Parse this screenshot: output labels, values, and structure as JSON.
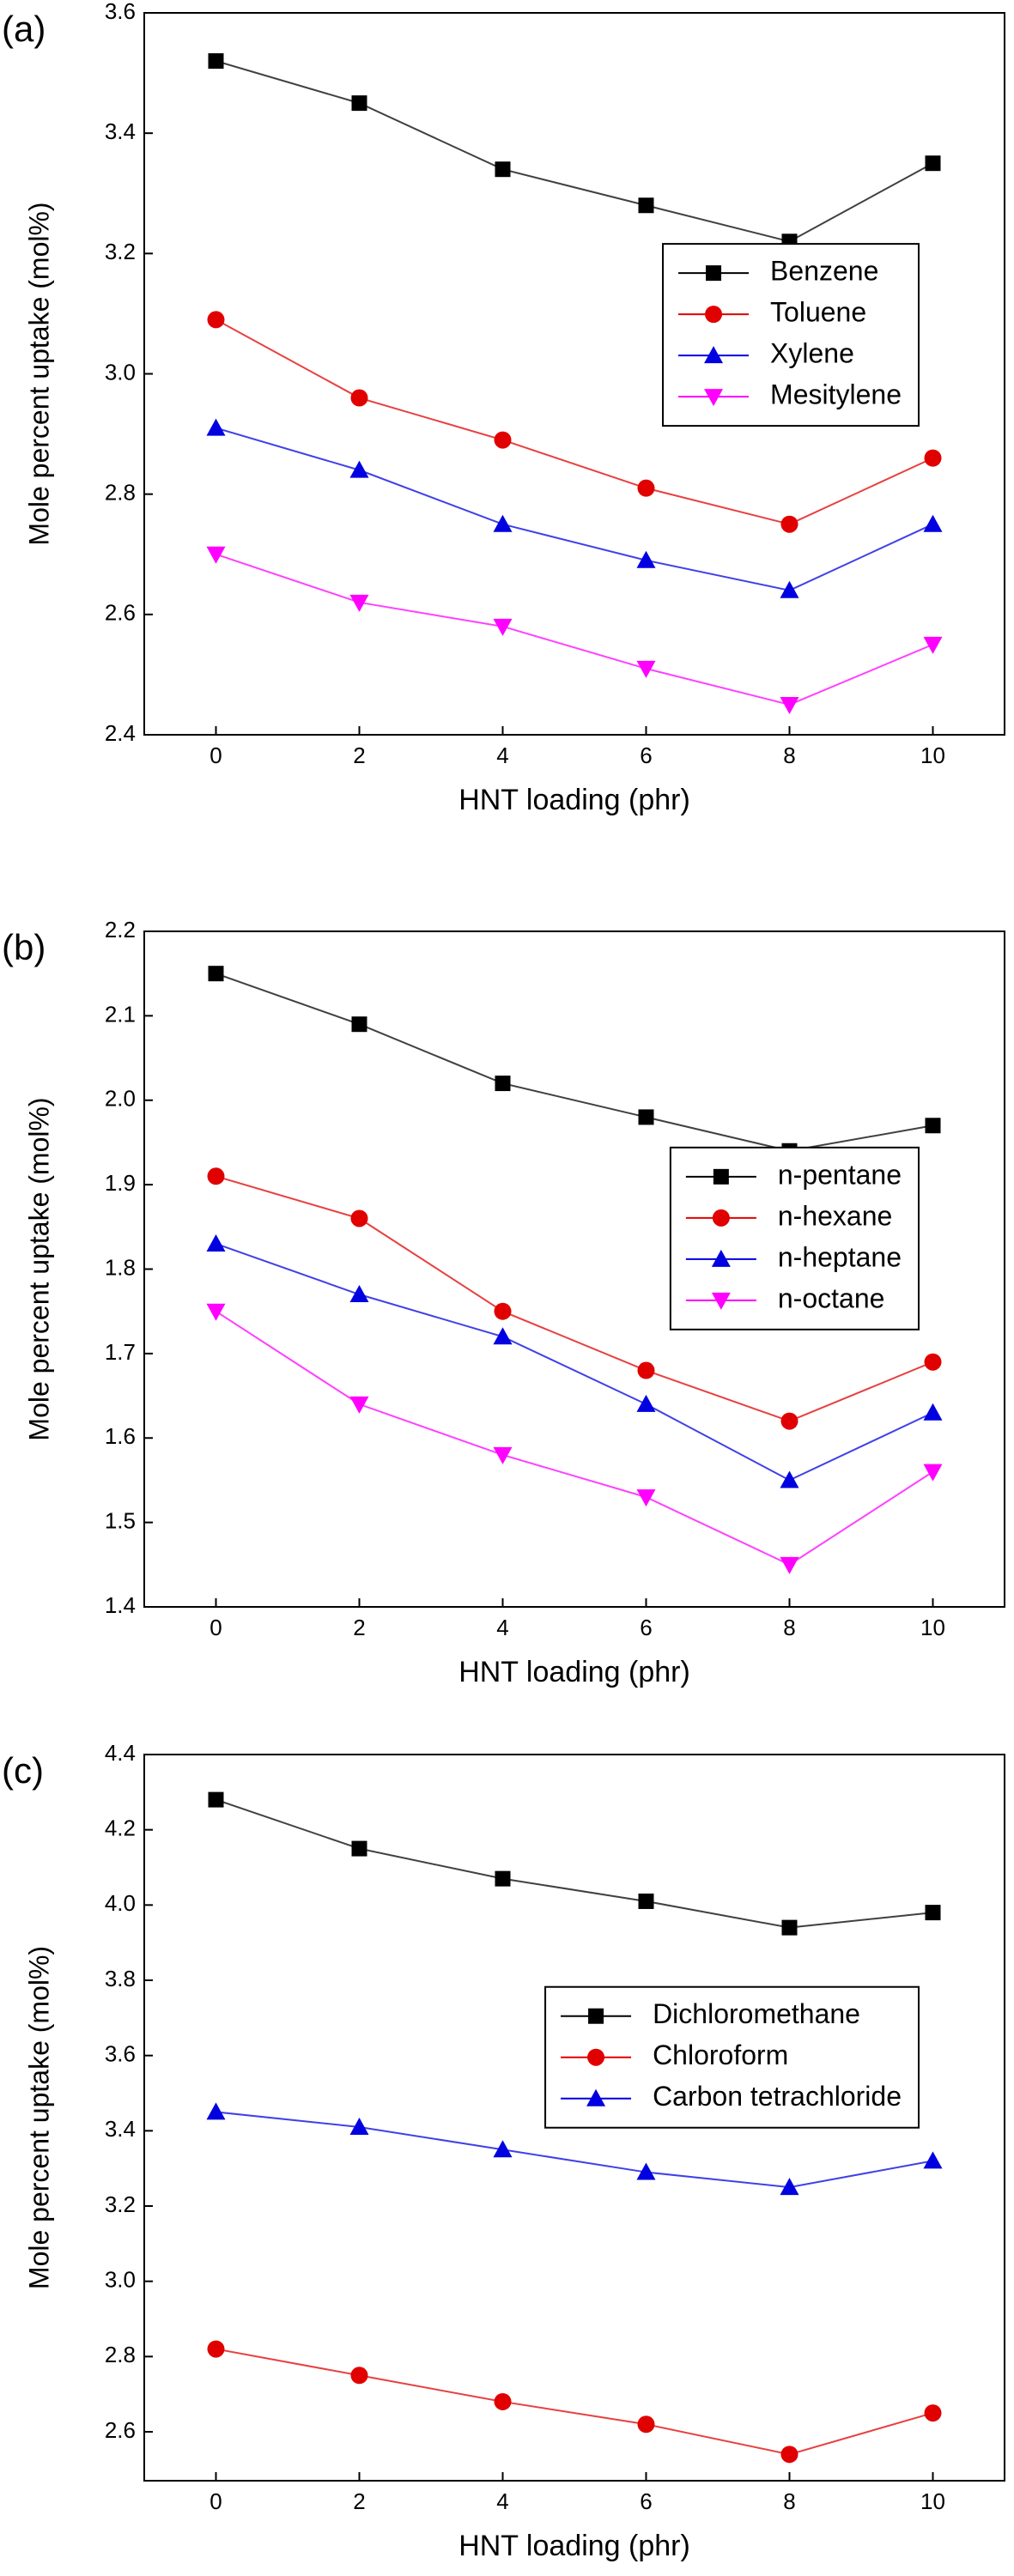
{
  "chart_data": [
    {
      "type": "line",
      "label": "(a)",
      "x_label": "HNT loading (phr)",
      "y_label": "Mole percent uptake (mol%)",
      "x": [
        0,
        2,
        4,
        6,
        8,
        10
      ],
      "xlim": [
        -1,
        11
      ],
      "xticks": [
        0,
        2,
        4,
        6,
        8,
        10
      ],
      "ylim": [
        2.4,
        3.6
      ],
      "yticks": [
        2.4,
        2.6,
        2.8,
        {
          "value": 3,
          "label": "3.0"
        },
        3.2,
        3.4,
        3.6
      ],
      "legend": "center right",
      "series": [
        {
          "name": "Benzene",
          "color": "#000000",
          "marker": "square",
          "values": [
            3.52,
            3.45,
            3.34,
            3.28,
            3.22,
            3.35
          ]
        },
        {
          "name": "Toluene",
          "color": "#e00000",
          "marker": "circle",
          "values": [
            3.09,
            2.96,
            2.89,
            2.81,
            2.75,
            2.86
          ]
        },
        {
          "name": "Xylene",
          "color": "#0000e0",
          "marker": "triangle-up",
          "values": [
            2.91,
            2.84,
            2.75,
            2.69,
            2.64,
            2.75
          ]
        },
        {
          "name": "Mesitylene",
          "color": "#ff00ff",
          "marker": "triangle-down",
          "values": [
            2.7,
            2.62,
            2.58,
            2.51,
            2.45,
            2.55
          ]
        }
      ]
    },
    {
      "type": "line",
      "label": "(b)",
      "x_label": "HNT loading (phr)",
      "y_label": "Mole percent uptake (mol%)",
      "x": [
        0,
        2,
        4,
        6,
        8,
        10
      ],
      "xlim": [
        -1,
        11
      ],
      "xticks": [
        0,
        2,
        4,
        6,
        8,
        10
      ],
      "ylim": [
        1.4,
        2.2
      ],
      "yticks": [
        1.4,
        1.5,
        1.6,
        1.7,
        1.8,
        1.9,
        {
          "value": 2,
          "label": "2.0"
        },
        2.1,
        2.2
      ],
      "legend": "center right",
      "series": [
        {
          "name": "n-pentane",
          "color": "#000000",
          "marker": "square",
          "values": [
            2.15,
            2.09,
            2.02,
            1.98,
            1.94,
            1.97
          ]
        },
        {
          "name": "n-hexane",
          "color": "#e00000",
          "marker": "circle",
          "values": [
            1.91,
            1.86,
            1.75,
            1.68,
            1.62,
            1.69
          ]
        },
        {
          "name": "n-heptane",
          "color": "#0000e0",
          "marker": "triangle-up",
          "values": [
            1.83,
            1.77,
            1.72,
            1.64,
            1.55,
            1.63
          ]
        },
        {
          "name": "n-octane",
          "color": "#ff00ff",
          "marker": "triangle-down",
          "values": [
            1.75,
            1.64,
            1.58,
            1.53,
            1.45,
            1.56
          ]
        }
      ]
    },
    {
      "type": "line",
      "label": "(c)",
      "x_label": "HNT loading (phr)",
      "y_label": "Mole percent uptake (mol%)",
      "x": [
        0,
        2,
        4,
        6,
        8,
        10
      ],
      "xlim": [
        -1,
        11
      ],
      "xticks": [
        0,
        2,
        4,
        6,
        8,
        10
      ],
      "ylim": [
        2.47,
        4.4
      ],
      "yticks": [
        2.6,
        2.8,
        {
          "value": 3,
          "label": "3.0"
        },
        3.2,
        3.4,
        3.6,
        3.8,
        {
          "value": 4,
          "label": "4.0"
        },
        4.2,
        4.4
      ],
      "legend": "center right",
      "series": [
        {
          "name": "Dichloromethane",
          "color": "#000000",
          "marker": "square",
          "values": [
            4.28,
            4.15,
            4.07,
            4.01,
            3.94,
            3.98
          ]
        },
        {
          "name": "Chloroform",
          "color": "#e00000",
          "marker": "circle",
          "values": [
            2.82,
            2.75,
            2.68,
            2.62,
            2.54,
            2.65
          ]
        },
        {
          "name": "Carbon tetrachloride",
          "color": "#0000e0",
          "marker": "triangle-up",
          "values": [
            3.45,
            3.41,
            3.35,
            3.29,
            3.25,
            3.32
          ]
        }
      ]
    }
  ]
}
